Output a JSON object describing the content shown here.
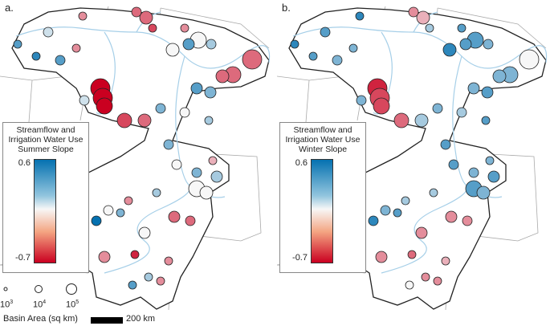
{
  "panels": [
    {
      "label": "a.",
      "legend_title": [
        "Streamflow and",
        "Irrigation Water Use",
        "Summer Slope"
      ],
      "max": "0.6",
      "min": "-0.7"
    },
    {
      "label": "b.",
      "legend_title": [
        "Streamflow and",
        "Irrigation Water Use",
        "Winter Slope"
      ],
      "max": "0.6",
      "min": "-0.7"
    }
  ],
  "colors": {
    "high": "#0571b0",
    "mid": "#f7f7f7",
    "low": "#ca0020",
    "basin_outline": "#222222",
    "river": "#a6cfe8",
    "state_border": "#aaaaaa"
  },
  "scale_range": [
    -0.7,
    0.6
  ],
  "size_legend": {
    "title": "Basin Area (sq km)",
    "base": "10",
    "exponents": [
      "3",
      "4",
      "5"
    ]
  },
  "scalebar": {
    "label": "200 km"
  },
  "station_slopes": {
    "summer": [
      -0.3,
      -0.4,
      -0.4,
      -0.5,
      -0.3,
      0.4,
      0,
      0,
      0.2,
      -0.4,
      -0.4,
      -0.4,
      -0.7,
      -0.7,
      -0.7,
      0.1,
      0.1,
      0.5,
      0.4,
      0.4,
      -0.3,
      -0.5,
      -0.4,
      0.3,
      0.4,
      0.3,
      0,
      0.2,
      0.3,
      0.3,
      0.2,
      0,
      0,
      -0.2,
      0,
      0.2,
      -0.3,
      0,
      0.3,
      0.6,
      -0.4,
      -0.4,
      0,
      0.1,
      -0.3,
      -0.6,
      0.2,
      -0.3,
      -0.3,
      0.4
    ],
    "winter": [
      0.5,
      -0.3,
      -0.2,
      0.2,
      0.4,
      0.4,
      0.5,
      0.4,
      0.3,
      0,
      0.3,
      0.3,
      -0.6,
      -0.5,
      -0.5,
      0.3,
      0.4,
      0.4,
      0.5,
      0.3,
      0.3,
      -0.4,
      0.2,
      0.3,
      0.3,
      0.4,
      0.2,
      0.4,
      0.4,
      0.3,
      0.4,
      0.4,
      0.3,
      0.3,
      0.4,
      0.2,
      0.2,
      0.3,
      0.4,
      0.5,
      -0.3,
      -0.3,
      -0.3,
      -0.3,
      -0.3,
      -0.4,
      -0.3,
      -0.3,
      -0.2,
      0
    ]
  }
}
